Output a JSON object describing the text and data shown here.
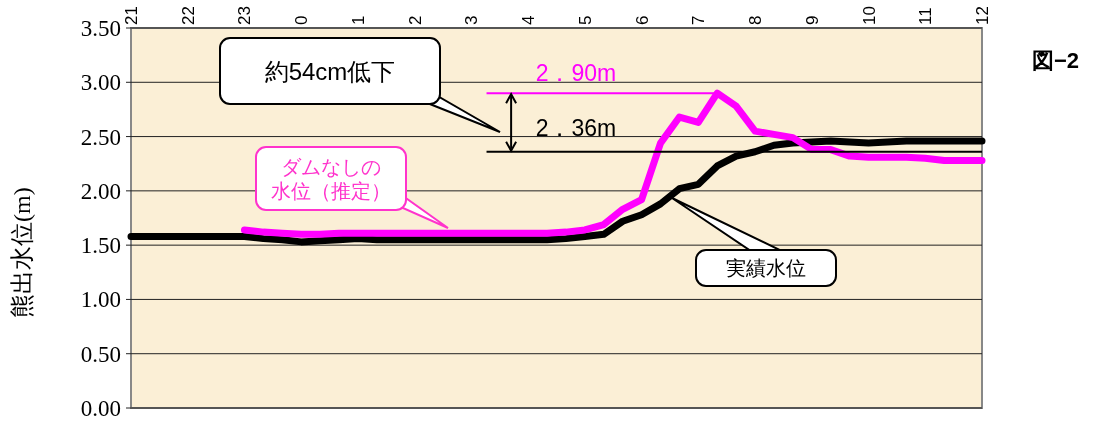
{
  "chart_data": {
    "type": "line",
    "ylabel": "熊出水位(m)",
    "categories": [
      "21",
      null,
      null,
      "22",
      null,
      null,
      "23",
      null,
      null,
      "0",
      null,
      null,
      "1",
      null,
      null,
      "2",
      null,
      null,
      "3",
      null,
      null,
      "4",
      null,
      null,
      "5",
      null,
      null,
      "6",
      null,
      null,
      "7",
      null,
      null,
      "8",
      null,
      null,
      "9",
      null,
      null,
      "10",
      null,
      null,
      "11",
      null,
      null,
      "12"
    ],
    "ylim": [
      0,
      3.5
    ],
    "yticks": [
      {
        "value": 0,
        "label": "0.00"
      },
      {
        "value": 0.5,
        "label": "0.50"
      },
      {
        "value": 1,
        "label": "1.00"
      },
      {
        "value": 1.5,
        "label": "1.50"
      },
      {
        "value": 2,
        "label": "2.00"
      },
      {
        "value": 2.5,
        "label": "2.50"
      },
      {
        "value": 3,
        "label": "3.00"
      },
      {
        "value": 3.5,
        "label": "3.50"
      }
    ],
    "grid": "y",
    "marker": "none",
    "line_style": "solid",
    "series": [
      {
        "color": "#000000",
        "values": [
          1.58,
          1.58,
          1.58,
          1.58,
          1.58,
          1.58,
          1.58,
          1.56,
          1.55,
          1.53,
          1.54,
          1.55,
          1.56,
          1.55,
          1.55,
          1.55,
          1.55,
          1.55,
          1.55,
          1.55,
          1.55,
          1.55,
          1.55,
          1.56,
          1.58,
          1.6,
          1.72,
          1.78,
          1.88,
          2.02,
          2.06,
          2.23,
          2.32,
          2.36,
          2.42,
          2.44,
          2.45,
          2.46,
          2.45,
          2.44,
          2.45,
          2.46,
          2.46,
          2.46,
          2.46,
          2.46
        ]
      },
      {
        "color": "#ff00ff",
        "values": [
          null,
          null,
          null,
          null,
          null,
          null,
          1.64,
          1.62,
          1.61,
          1.6,
          1.6,
          1.61,
          1.61,
          1.61,
          1.61,
          1.61,
          1.61,
          1.61,
          1.61,
          1.61,
          1.61,
          1.61,
          1.61,
          1.62,
          1.64,
          1.69,
          1.83,
          1.92,
          2.44,
          2.68,
          2.63,
          2.9,
          2.78,
          2.55,
          2.52,
          2.49,
          2.38,
          2.38,
          2.32,
          2.31,
          2.31,
          2.31,
          2.3,
          2.28,
          2.28,
          2.28
        ]
      }
    ],
    "ref_lines": [
      {
        "axis": "y",
        "value": 2.9,
        "label": "2．90m",
        "color": "#ff00ff"
      },
      {
        "axis": "y",
        "value": 2.36,
        "label": "2．36m",
        "color": "#000000"
      }
    ],
    "annotations": [
      "約54cm低下",
      "ダムなしの水位（推定）",
      "実績水位",
      "図−2"
    ]
  }
}
